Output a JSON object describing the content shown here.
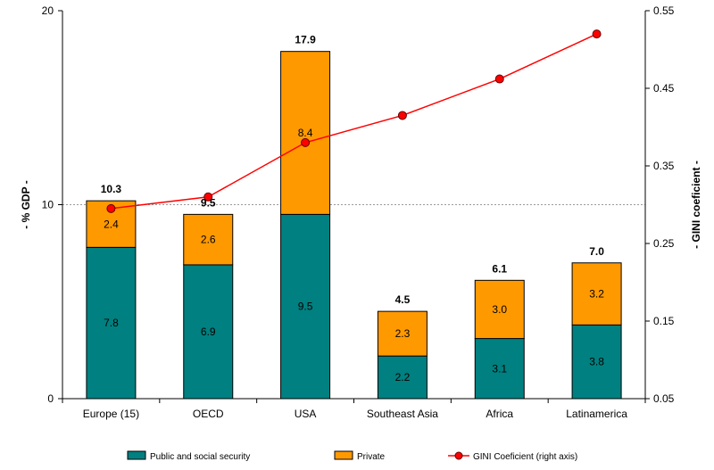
{
  "chart_data": {
    "type": "bar",
    "subtype": "stacked-bar-with-line",
    "categories": [
      "Europe (15)",
      "OECD",
      "USA",
      "Southeast Asia",
      "Africa",
      "Latinamerica"
    ],
    "series": [
      {
        "name": "Public and social security",
        "kind": "bar",
        "axis": "left",
        "color": "#008080",
        "values": [
          7.8,
          6.9,
          9.5,
          2.2,
          3.1,
          3.8
        ]
      },
      {
        "name": "Private",
        "kind": "bar",
        "axis": "left",
        "color": "#FF9900",
        "values": [
          2.4,
          2.6,
          8.4,
          2.3,
          3.0,
          3.2
        ]
      },
      {
        "name": "GINI Coeficient (right axis)",
        "kind": "line",
        "axis": "right",
        "color": "#FF0000",
        "values": [
          0.295,
          0.31,
          0.38,
          0.415,
          0.462,
          0.52
        ]
      }
    ],
    "totals": [
      "10.3",
      "9.5",
      "17.9",
      "4.5",
      "6.1",
      "7.0"
    ],
    "bar_value_labels": {
      "public": [
        "7.8",
        "6.9",
        "9.5",
        "2.2",
        "3.1",
        "3.8"
      ],
      "private": [
        "2.4",
        "2.6",
        "8.4",
        "2.3",
        "3.0",
        "3.2"
      ]
    },
    "ylabel_left": "- % GDP -",
    "ylabel_right": "- GINI coeficient -",
    "ylim_left": [
      0,
      20
    ],
    "yticks_left": [
      "0",
      "10",
      "20"
    ],
    "ylim_right": [
      0.05,
      0.55
    ],
    "yticks_right": [
      "0.05",
      "0.15",
      "0.25",
      "0.35",
      "0.45",
      "0.55"
    ],
    "gridline_left_value": 10,
    "legend_position": "bottom"
  }
}
